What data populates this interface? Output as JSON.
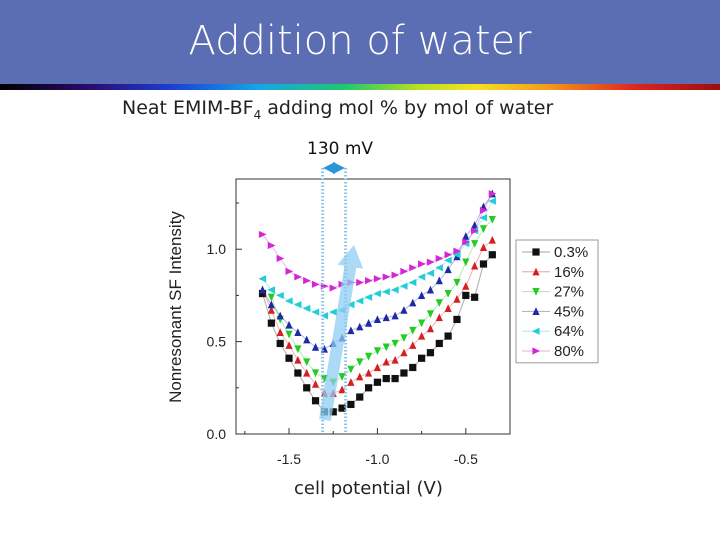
{
  "slide": {
    "title": "Addition of water",
    "subtitle_main": "Neat EMIM-BF",
    "subtitle_sub": "4",
    "subtitle_rest": " adding mol % by mol of water",
    "annotation": "130 mV"
  },
  "colors": {
    "banner": "#5b6db3",
    "arrow": "#8ecdf2",
    "marker_line": "#7fbde6"
  },
  "chart_data": {
    "type": "scatter",
    "title": "",
    "xlabel": "cell potential (V)",
    "ylabel": "Nonresonant SF Intensity",
    "xlim": [
      -1.8,
      -0.25
    ],
    "ylim": [
      0.0,
      1.38
    ],
    "xticks": [
      "-1.5",
      "-1.0",
      "-0.5"
    ],
    "yticks": [
      "0.0",
      "0.5",
      "1.0"
    ],
    "xtick_values": [
      -1.5,
      -1.0,
      -0.5
    ],
    "ytick_values": [
      0.0,
      0.5,
      1.0
    ],
    "legend_position": "right",
    "annotation_lines_x": [
      -1.31,
      -1.18
    ],
    "series": [
      {
        "name": "0.3%",
        "marker": "square",
        "color": "#111111",
        "x": [
          -1.65,
          -1.6,
          -1.55,
          -1.5,
          -1.45,
          -1.4,
          -1.35,
          -1.3,
          -1.25,
          -1.2,
          -1.15,
          -1.1,
          -1.05,
          -1.0,
          -0.95,
          -0.9,
          -0.85,
          -0.8,
          -0.75,
          -0.7,
          -0.65,
          -0.6,
          -0.55,
          -0.5,
          -0.45,
          -0.4,
          -0.35
        ],
        "y": [
          0.76,
          0.6,
          0.49,
          0.41,
          0.33,
          0.25,
          0.18,
          0.12,
          0.12,
          0.14,
          0.16,
          0.2,
          0.25,
          0.28,
          0.3,
          0.3,
          0.33,
          0.36,
          0.41,
          0.44,
          0.49,
          0.53,
          0.62,
          0.75,
          0.74,
          0.92,
          0.97
        ]
      },
      {
        "name": "16%",
        "marker": "triangle-up",
        "color": "#d42020",
        "x": [
          -1.65,
          -1.6,
          -1.55,
          -1.5,
          -1.45,
          -1.4,
          -1.35,
          -1.3,
          -1.25,
          -1.2,
          -1.15,
          -1.1,
          -1.05,
          -1.0,
          -0.95,
          -0.9,
          -0.85,
          -0.8,
          -0.75,
          -0.7,
          -0.65,
          -0.6,
          -0.55,
          -0.5,
          -0.45,
          -0.4,
          -0.35
        ],
        "y": [
          0.78,
          0.67,
          0.55,
          0.48,
          0.4,
          0.33,
          0.27,
          0.22,
          0.22,
          0.24,
          0.28,
          0.31,
          0.33,
          0.36,
          0.39,
          0.4,
          0.44,
          0.48,
          0.53,
          0.57,
          0.63,
          0.68,
          0.73,
          0.8,
          0.91,
          1.01,
          1.05
        ]
      },
      {
        "name": "27%",
        "marker": "triangle-down",
        "color": "#22cc22",
        "x": [
          -1.6,
          -1.55,
          -1.5,
          -1.45,
          -1.4,
          -1.35,
          -1.3,
          -1.25,
          -1.2,
          -1.15,
          -1.1,
          -1.05,
          -1.0,
          -0.95,
          -0.9,
          -0.85,
          -0.8,
          -0.75,
          -0.7,
          -0.65,
          -0.6,
          -0.55,
          -0.5,
          -0.45,
          -0.4,
          -0.35
        ],
        "y": [
          0.74,
          0.62,
          0.54,
          0.46,
          0.39,
          0.33,
          0.3,
          0.28,
          0.31,
          0.35,
          0.39,
          0.42,
          0.45,
          0.47,
          0.49,
          0.52,
          0.56,
          0.6,
          0.65,
          0.71,
          0.76,
          0.82,
          0.93,
          1.03,
          1.11,
          1.16
        ]
      },
      {
        "name": "45%",
        "marker": "triangle-up",
        "color": "#1c2aa6",
        "x": [
          -1.65,
          -1.6,
          -1.55,
          -1.5,
          -1.45,
          -1.4,
          -1.35,
          -1.3,
          -1.25,
          -1.2,
          -1.15,
          -1.1,
          -1.05,
          -1.0,
          -0.95,
          -0.9,
          -0.85,
          -0.8,
          -0.75,
          -0.7,
          -0.65,
          -0.6,
          -0.55,
          -0.5,
          -0.45,
          -0.4,
          -0.35
        ],
        "y": [
          0.78,
          0.7,
          0.64,
          0.59,
          0.55,
          0.51,
          0.47,
          0.46,
          0.49,
          0.52,
          0.56,
          0.58,
          0.6,
          0.62,
          0.63,
          0.64,
          0.67,
          0.71,
          0.75,
          0.78,
          0.83,
          0.89,
          0.96,
          1.07,
          1.13,
          1.23,
          1.3
        ]
      },
      {
        "name": "64%",
        "marker": "triangle-left",
        "color": "#22cdd6",
        "x": [
          -1.65,
          -1.6,
          -1.55,
          -1.5,
          -1.45,
          -1.4,
          -1.35,
          -1.3,
          -1.25,
          -1.2,
          -1.15,
          -1.1,
          -1.05,
          -1.0,
          -0.95,
          -0.9,
          -0.85,
          -0.8,
          -0.75,
          -0.7,
          -0.65,
          -0.6,
          -0.55,
          -0.5,
          -0.45,
          -0.4,
          -0.35
        ],
        "y": [
          0.84,
          0.78,
          0.75,
          0.72,
          0.7,
          0.68,
          0.66,
          0.64,
          0.66,
          0.67,
          0.7,
          0.72,
          0.74,
          0.76,
          0.77,
          0.78,
          0.8,
          0.82,
          0.85,
          0.87,
          0.9,
          0.94,
          0.97,
          1.03,
          1.1,
          1.17,
          1.26
        ]
      },
      {
        "name": "80%",
        "marker": "triangle-right",
        "color": "#d427d4",
        "x": [
          -1.65,
          -1.6,
          -1.55,
          -1.5,
          -1.45,
          -1.4,
          -1.35,
          -1.3,
          -1.25,
          -1.2,
          -1.15,
          -1.1,
          -1.05,
          -1.0,
          -0.95,
          -0.9,
          -0.85,
          -0.8,
          -0.75,
          -0.7,
          -0.65,
          -0.6,
          -0.55,
          -0.5,
          -0.45,
          -0.4,
          -0.35
        ],
        "y": [
          1.08,
          1.02,
          0.95,
          0.88,
          0.85,
          0.83,
          0.81,
          0.8,
          0.79,
          0.81,
          0.82,
          0.82,
          0.83,
          0.84,
          0.85,
          0.86,
          0.88,
          0.9,
          0.92,
          0.93,
          0.95,
          0.97,
          0.99,
          1.04,
          1.1,
          1.21,
          1.3
        ]
      }
    ]
  }
}
